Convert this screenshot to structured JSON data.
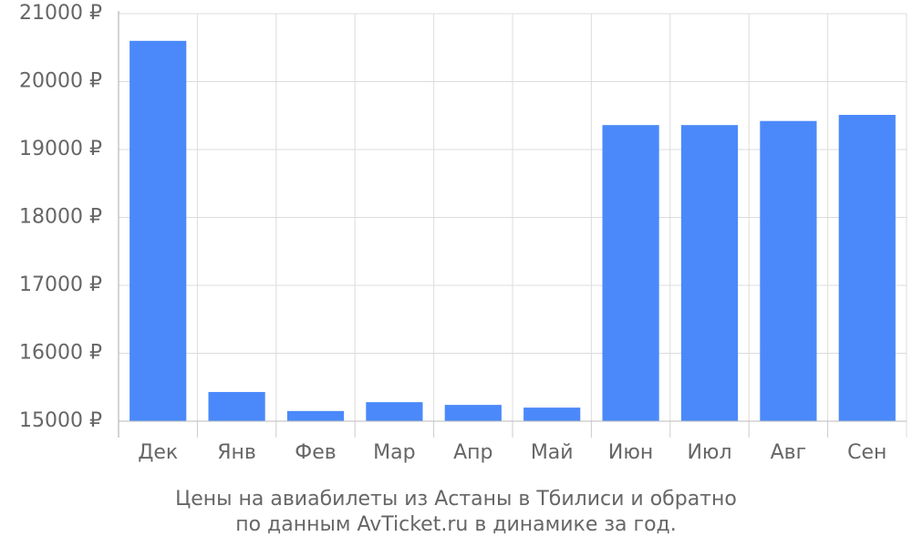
{
  "chart_data": {
    "type": "bar",
    "title": [
      "Цены на авиабилеты из Астаны в Тбилиси и обратно",
      "по данным AvTicket.ru в динамике за год."
    ],
    "categories": [
      "Дек",
      "Янв",
      "Фев",
      "Мар",
      "Апр",
      "Май",
      "Июн",
      "Июл",
      "Авг",
      "Сен"
    ],
    "values": [
      20600,
      15430,
      15150,
      15280,
      15240,
      15200,
      19360,
      19360,
      19420,
      19510
    ],
    "color": "#4b89fa",
    "ylim": [
      15000,
      21000
    ],
    "yticks": [
      {
        "value": 15000,
        "label": "15000 ₽"
      },
      {
        "value": 16000,
        "label": "16000 ₽"
      },
      {
        "value": 17000,
        "label": "17000 ₽"
      },
      {
        "value": 18000,
        "label": "18000 ₽"
      },
      {
        "value": 19000,
        "label": "19000 ₽"
      },
      {
        "value": 20000,
        "label": "20000 ₽"
      },
      {
        "value": 21000,
        "label": "21000 ₽"
      }
    ],
    "grid": true
  }
}
